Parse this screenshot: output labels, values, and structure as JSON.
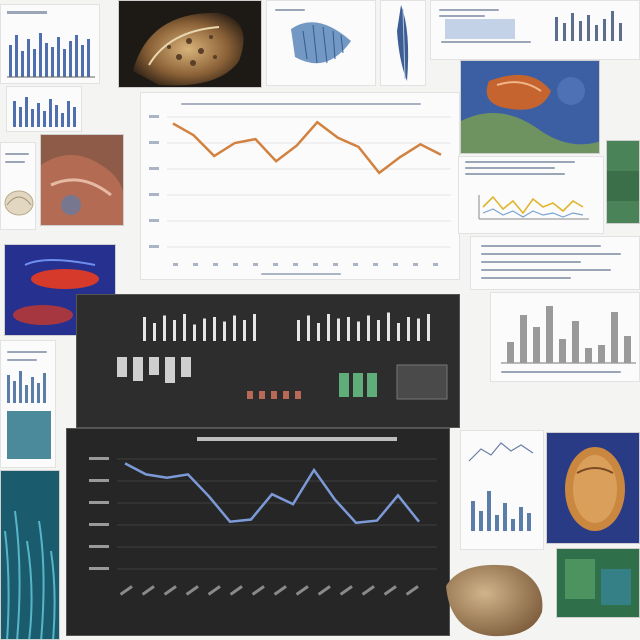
{
  "collage": {
    "main_line_chart": {
      "title": "",
      "values": [
        0.95,
        0.86,
        0.7,
        0.8,
        0.83,
        0.66,
        0.78,
        0.96,
        0.84,
        0.77,
        0.57,
        0.69,
        0.79,
        0.71
      ],
      "line_color": "#d2813f"
    },
    "dark_line_chart": {
      "title": "",
      "values": [
        0.96,
        0.86,
        0.83,
        0.86,
        0.66,
        0.43,
        0.45,
        0.68,
        0.59,
        0.9,
        0.63,
        0.42,
        0.44,
        0.67,
        0.43
      ],
      "line_color": "#7d9ad8"
    },
    "gray_bar_chart": {
      "values": [
        0.35,
        0.8,
        0.6,
        0.95,
        0.4,
        0.7,
        0.25,
        0.3,
        0.85,
        0.45
      ],
      "bar_color": "#9a9a9a"
    },
    "dark_strip_left": {
      "bars": [
        0.8,
        0.6,
        0.85,
        0.7,
        0.9,
        0.55,
        0.75,
        0.8,
        0.65,
        0.85,
        0.7,
        0.9
      ]
    },
    "dark_strip_right": {
      "bars": [
        0.7,
        0.85,
        0.6,
        0.9,
        0.75,
        0.8,
        0.65,
        0.85,
        0.7,
        0.95,
        0.6,
        0.8,
        0.75,
        0.9
      ]
    },
    "colors": {
      "accent_orange": "#d2813f",
      "accent_blue": "#7d9ad8",
      "panel_dark": "#2b2b2b"
    }
  }
}
